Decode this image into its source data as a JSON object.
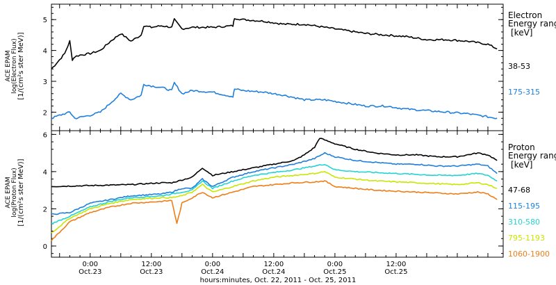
{
  "chart_data": [
    {
      "type": "line",
      "ylabel": [
        "ACE EPAM",
        "log(Electron Flux)",
        "[1/(cm²s ster MeV)]"
      ],
      "ylim": [
        1.4,
        5.5
      ],
      "yticks": [
        2,
        3,
        4,
        5
      ],
      "legend": {
        "title": [
          "Electron",
          "Energy range",
          "[keV]"
        ],
        "placement": "right"
      },
      "xlim_hours": [
        -7.6,
        81
      ],
      "series": [
        {
          "name": "38-53",
          "color": "#000000",
          "x": [
            -7.6,
            -6,
            -5,
            -4,
            -3.5,
            -3,
            -2,
            0,
            2,
            4,
            6,
            8,
            10,
            10.5,
            12,
            14,
            16,
            16.5,
            18,
            20,
            24,
            28,
            28.3,
            30,
            34,
            38,
            42,
            46,
            50,
            54,
            58,
            62,
            66,
            70,
            74,
            78,
            79.8
          ],
          "y": [
            3.4,
            3.7,
            3.9,
            4.3,
            3.7,
            3.8,
            3.85,
            3.9,
            4.0,
            4.3,
            4.55,
            4.3,
            4.5,
            4.8,
            4.75,
            4.8,
            4.75,
            5.0,
            4.7,
            4.75,
            4.75,
            4.8,
            5.05,
            5.0,
            4.95,
            4.85,
            4.85,
            4.75,
            4.65,
            4.55,
            4.5,
            4.45,
            4.35,
            4.35,
            4.3,
            4.2,
            4.05
          ]
        },
        {
          "name": "175-315",
          "color": "#1f7fdd",
          "x": [
            -7.6,
            -6,
            -4,
            -3.5,
            -3,
            0,
            2,
            4,
            6,
            8,
            10,
            10.5,
            12,
            14,
            16,
            16.5,
            18,
            20,
            24,
            28,
            28.3,
            30,
            34,
            38,
            42,
            46,
            50,
            54,
            58,
            62,
            66,
            70,
            74,
            78,
            79.8
          ],
          "y": [
            1.8,
            1.9,
            2.0,
            1.9,
            1.8,
            1.9,
            2.0,
            2.3,
            2.6,
            2.4,
            2.55,
            2.9,
            2.85,
            2.8,
            2.7,
            2.95,
            2.6,
            2.7,
            2.65,
            2.5,
            2.75,
            2.7,
            2.65,
            2.55,
            2.4,
            2.4,
            2.3,
            2.2,
            2.2,
            2.1,
            2.05,
            2.0,
            1.95,
            1.85,
            1.8
          ]
        }
      ]
    },
    {
      "type": "line",
      "ylabel": [
        "ACE EPAM",
        "log(Proton Flux)",
        "[1/(cm²s ster MeV)]"
      ],
      "ylim": [
        -0.6,
        6.2
      ],
      "yticks": [
        0,
        2,
        4,
        6
      ],
      "legend": {
        "title": [
          "Proton",
          "Energy range",
          "[keV]"
        ],
        "placement": "right"
      },
      "xlim_hours": [
        -7.6,
        81
      ],
      "series": [
        {
          "name": "47-68",
          "color": "#000000",
          "x": [
            -7.6,
            0,
            8,
            14,
            16,
            18,
            20,
            22,
            24,
            28,
            32,
            36,
            40,
            42,
            44,
            45,
            46,
            48,
            52,
            56,
            60,
            64,
            68,
            72,
            76,
            78,
            79.8
          ],
          "y": [
            3.2,
            3.25,
            3.3,
            3.4,
            3.4,
            3.55,
            3.7,
            4.2,
            3.8,
            4.0,
            4.2,
            4.4,
            4.6,
            4.9,
            5.3,
            5.8,
            5.7,
            5.5,
            5.2,
            5.0,
            4.9,
            4.9,
            4.8,
            4.8,
            5.0,
            4.9,
            4.6
          ]
        },
        {
          "name": "115-195",
          "color": "#1f7fdd",
          "x": [
            -7.6,
            -4,
            0,
            4,
            8,
            14,
            16,
            18,
            20,
            22,
            24,
            28,
            32,
            36,
            40,
            44,
            46,
            48,
            52,
            56,
            60,
            64,
            68,
            72,
            76,
            78,
            79.8
          ],
          "y": [
            1.7,
            1.8,
            2.3,
            2.5,
            2.7,
            2.8,
            2.9,
            3.1,
            3.1,
            3.6,
            3.2,
            3.7,
            4.0,
            4.2,
            4.4,
            4.7,
            5.0,
            4.8,
            4.6,
            4.5,
            4.4,
            4.4,
            4.3,
            4.3,
            4.4,
            4.3,
            3.9
          ]
        },
        {
          "name": "310-580",
          "color": "#22d3d3",
          "x": [
            -7.6,
            -4,
            0,
            4,
            8,
            14,
            16,
            18,
            20,
            22,
            24,
            28,
            32,
            36,
            40,
            44,
            46,
            48,
            52,
            56,
            60,
            64,
            68,
            72,
            76,
            78,
            79.8
          ],
          "y": [
            1.2,
            1.6,
            2.1,
            2.4,
            2.6,
            2.7,
            2.8,
            2.9,
            3.0,
            3.5,
            3.1,
            3.5,
            3.8,
            3.95,
            4.1,
            4.3,
            4.4,
            4.1,
            4.0,
            3.95,
            3.9,
            3.85,
            3.8,
            3.8,
            3.9,
            3.8,
            3.5
          ]
        },
        {
          "name": "795-1193",
          "color": "#c8e600",
          "x": [
            -7.6,
            -4,
            0,
            4,
            8,
            14,
            16,
            18,
            20,
            22,
            24,
            28,
            32,
            36,
            40,
            44,
            46,
            48,
            52,
            56,
            60,
            64,
            68,
            72,
            76,
            78,
            79.8
          ],
          "y": [
            0.7,
            1.5,
            2.0,
            2.3,
            2.5,
            2.6,
            2.6,
            2.7,
            2.9,
            3.3,
            2.9,
            3.2,
            3.5,
            3.7,
            3.8,
            3.9,
            4.0,
            3.7,
            3.6,
            3.5,
            3.45,
            3.4,
            3.35,
            3.3,
            3.4,
            3.3,
            3.1
          ]
        },
        {
          "name": "1060-1900",
          "color": "#ef7d17",
          "x": [
            -7.6,
            -4,
            0,
            4,
            8,
            14,
            16,
            17,
            18,
            20,
            22,
            24,
            28,
            32,
            36,
            40,
            44,
            46,
            48,
            52,
            56,
            60,
            64,
            68,
            72,
            76,
            78,
            79.8
          ],
          "y": [
            0.3,
            1.3,
            1.8,
            2.1,
            2.3,
            2.4,
            2.45,
            1.2,
            2.3,
            2.6,
            2.9,
            2.6,
            2.9,
            3.2,
            3.3,
            3.4,
            3.45,
            3.5,
            3.2,
            3.1,
            3.0,
            2.95,
            2.9,
            2.85,
            2.8,
            2.9,
            2.8,
            2.5
          ]
        }
      ]
    }
  ],
  "x_axis": {
    "ticks": [
      {
        "hour": 0,
        "time": "0:00",
        "date": "Oct.23"
      },
      {
        "hour": 12,
        "time": "12:00",
        "date": "Oct.23"
      },
      {
        "hour": 24,
        "time": "0:00",
        "date": "Oct.24"
      },
      {
        "hour": 36,
        "time": "12:00",
        "date": "Oct.24"
      },
      {
        "hour": 48,
        "time": "0:00",
        "date": "Oct.25"
      },
      {
        "hour": 60,
        "time": "12:00",
        "date": "Oct.25"
      }
    ],
    "title": "hours:minutes, Oct. 22, 2011 - Oct. 25, 2011"
  }
}
